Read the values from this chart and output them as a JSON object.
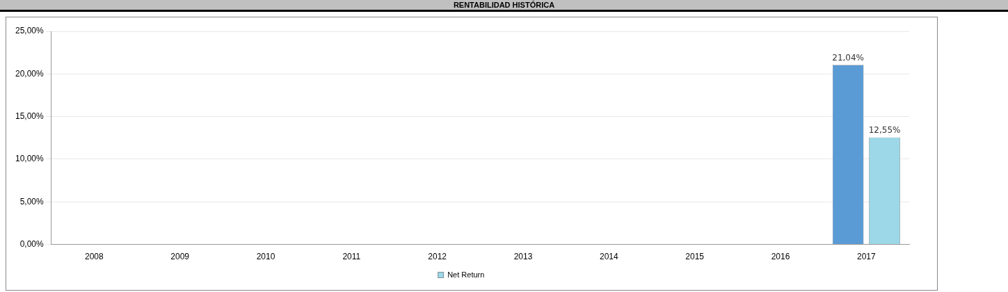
{
  "chart_data": {
    "type": "bar",
    "title": "RENTABILIDAD HISTÓRICA",
    "categories": [
      "2008",
      "2009",
      "2010",
      "2011",
      "2012",
      "2013",
      "2014",
      "2015",
      "2016",
      "2017"
    ],
    "series": [
      {
        "color": "#5b9bd5",
        "values": [
          null,
          null,
          null,
          null,
          null,
          null,
          null,
          null,
          null,
          21.04
        ],
        "value_labels": [
          null,
          null,
          null,
          null,
          null,
          null,
          null,
          null,
          null,
          "21,04%"
        ]
      },
      {
        "name": "Net Return",
        "color": "#9cd8e8",
        "values": [
          null,
          null,
          null,
          null,
          null,
          null,
          null,
          null,
          null,
          12.55
        ],
        "value_labels": [
          null,
          null,
          null,
          null,
          null,
          null,
          null,
          null,
          null,
          "12,55%"
        ]
      }
    ],
    "ylim": [
      0,
      25
    ],
    "yticks": [
      {
        "value": 0,
        "label": "0,00%"
      },
      {
        "value": 5,
        "label": "5,00%"
      },
      {
        "value": 10,
        "label": "10,00%"
      },
      {
        "value": 15,
        "label": "15,00%"
      },
      {
        "value": 20,
        "label": "20,00%"
      },
      {
        "value": 25,
        "label": "25,00%"
      }
    ],
    "grid": "y",
    "legend": "bottom"
  }
}
